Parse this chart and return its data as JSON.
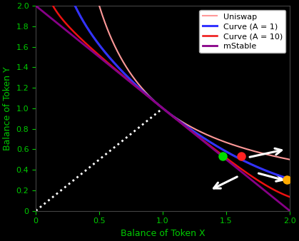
{
  "title": "",
  "xlabel": "Balance of Token X",
  "ylabel": "Balance of Token Y",
  "xlim": [
    0,
    2
  ],
  "ylim": [
    0,
    2
  ],
  "background_color": "#000000",
  "axis_label_color": "#00cc00",
  "tick_color": "#00cc00",
  "text_color": "#ffffff",
  "grid": false,
  "uniswap_color": "#ff9999",
  "curve_a1_color": "#3333ff",
  "curve_a10_color": "#ee1111",
  "mstable_color": "#880088",
  "dot_line_color": "#ffffff",
  "green_dot": [
    1.47,
    0.535
  ],
  "red_dot": [
    1.62,
    0.535
  ],
  "yellow_dot": [
    1.975,
    0.3
  ],
  "legend_labels": [
    "Uniswap",
    "Curve (A = 1)",
    "Curve (A = 10)",
    "mStable"
  ],
  "legend_colors": [
    "#ff9999",
    "#3333ff",
    "#ee1111",
    "#880088"
  ],
  "arrow_color": "#ffffff",
  "k_uniswap": 1.0,
  "xticks": [
    0,
    0.5,
    1.0,
    1.5,
    2.0
  ],
  "yticks": [
    0,
    0.2,
    0.4,
    0.6,
    0.8,
    1.0,
    1.2,
    1.4,
    1.6,
    1.8,
    2.0
  ]
}
